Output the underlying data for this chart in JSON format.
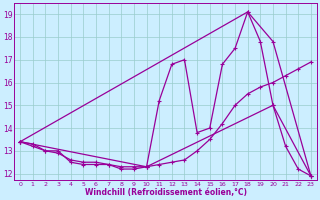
{
  "xlabel": "Windchill (Refroidissement éolien,°C)",
  "bg_color": "#cceeff",
  "line_color": "#990099",
  "grid_color": "#99cccc",
  "xlim": [
    -0.5,
    23.5
  ],
  "ylim": [
    11.7,
    19.5
  ],
  "xticks": [
    0,
    1,
    2,
    3,
    4,
    5,
    6,
    7,
    8,
    9,
    10,
    11,
    12,
    13,
    14,
    15,
    16,
    17,
    18,
    19,
    20,
    21,
    22,
    23
  ],
  "yticks": [
    12,
    13,
    14,
    15,
    16,
    17,
    18,
    19
  ],
  "line1_x": [
    0,
    1,
    2,
    3,
    4,
    5,
    6,
    7,
    8,
    9,
    10,
    11,
    12,
    13,
    14,
    15,
    16,
    17,
    18,
    19,
    20,
    21,
    22,
    23
  ],
  "line1_y": [
    13.4,
    13.3,
    13.0,
    13.0,
    12.5,
    12.4,
    12.4,
    12.4,
    12.2,
    12.2,
    12.3,
    15.2,
    16.8,
    17.0,
    13.8,
    14.0,
    16.8,
    17.5,
    19.1,
    17.8,
    15.0,
    13.2,
    12.2,
    11.9
  ],
  "line2_x": [
    0,
    1,
    2,
    3,
    4,
    5,
    6,
    7,
    8,
    9,
    10,
    11,
    12,
    13,
    14,
    15,
    16,
    17,
    18,
    19,
    20,
    21,
    22,
    23
  ],
  "line2_y": [
    13.4,
    13.2,
    13.0,
    12.9,
    12.6,
    12.5,
    12.5,
    12.4,
    12.3,
    12.3,
    12.3,
    12.4,
    12.5,
    12.6,
    13.0,
    13.5,
    14.2,
    15.0,
    15.5,
    15.8,
    16.0,
    16.3,
    16.6,
    16.9
  ],
  "line3_x": [
    0,
    18,
    20,
    23
  ],
  "line3_y": [
    13.4,
    19.1,
    17.8,
    11.9
  ],
  "line4_x": [
    0,
    10,
    20,
    23
  ],
  "line4_y": [
    13.4,
    12.3,
    15.0,
    11.9
  ],
  "markersize": 3.5,
  "linewidth": 0.9
}
